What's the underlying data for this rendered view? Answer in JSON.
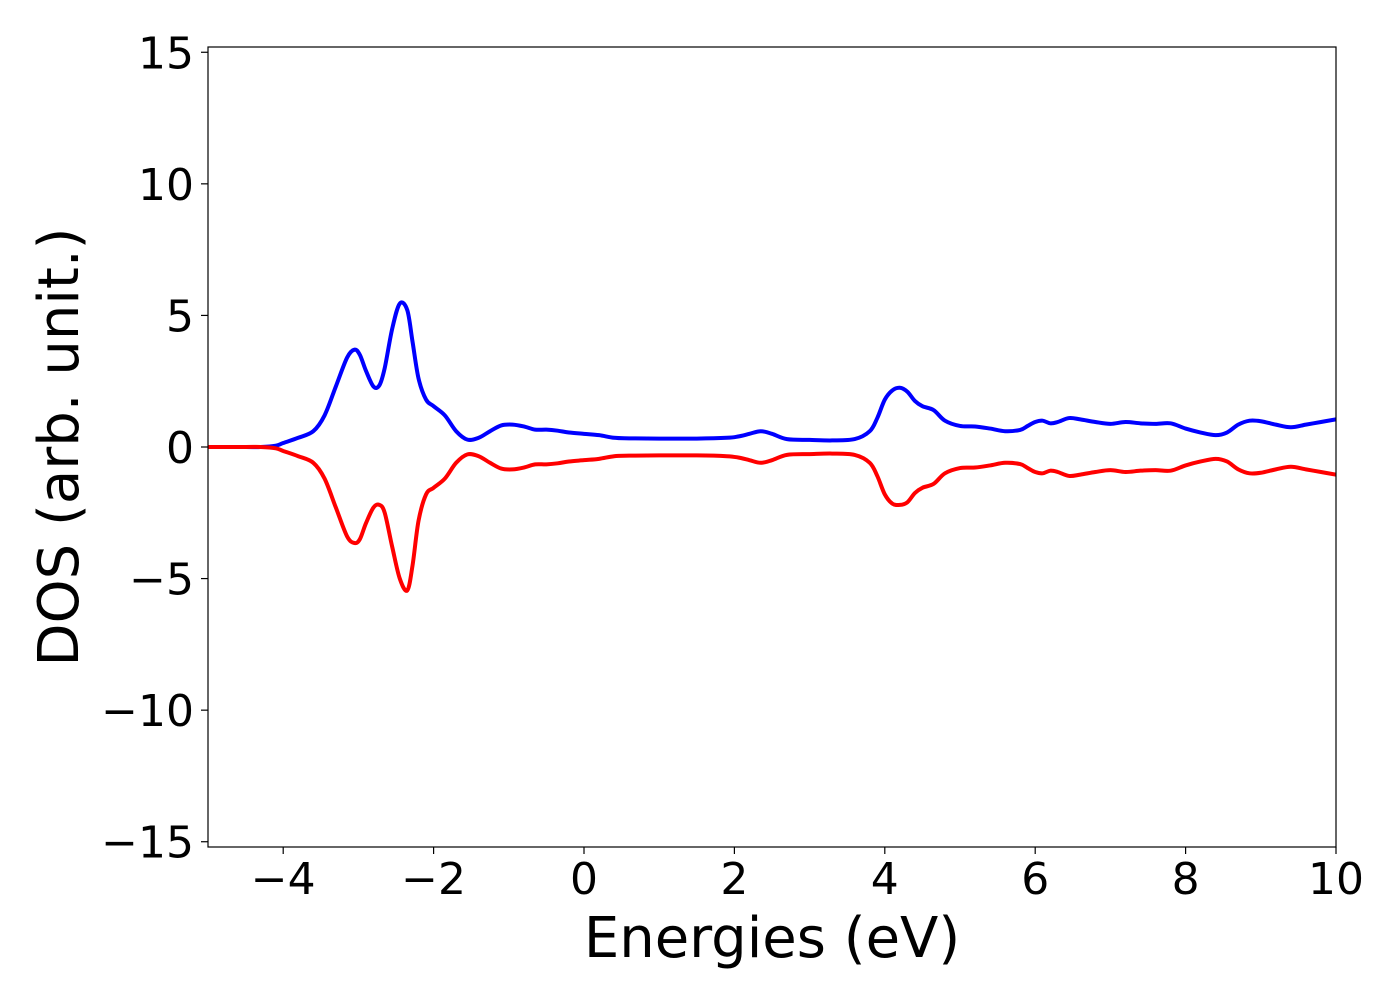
{
  "chart_data": {
    "type": "line",
    "title": "",
    "xlabel": "Energies (eV)",
    "ylabel": "DOS (arb. unit.)",
    "xlim": [
      -5,
      10
    ],
    "ylim": [
      -15.2,
      15.2
    ],
    "xticks": [
      -4,
      -2,
      0,
      2,
      4,
      6,
      8,
      10
    ],
    "yticks": [
      -15,
      -10,
      -5,
      0,
      5,
      10,
      15
    ],
    "xtick_labels": [
      "−4",
      "−2",
      "0",
      "2",
      "4",
      "6",
      "8",
      "10"
    ],
    "ytick_labels": [
      "−15",
      "−10",
      "−5",
      "0",
      "5",
      "10",
      "15"
    ],
    "grid": false,
    "legend": "none",
    "series": [
      {
        "color": "#0000ff",
        "x": [
          -5.0,
          -4.5,
          -4.3,
          -4.1,
          -4.0,
          -3.8,
          -3.6,
          -3.45,
          -3.3,
          -3.15,
          -3.05,
          -2.98,
          -2.9,
          -2.8,
          -2.72,
          -2.65,
          -2.55,
          -2.45,
          -2.35,
          -2.28,
          -2.2,
          -2.1,
          -2.0,
          -1.85,
          -1.7,
          -1.55,
          -1.4,
          -1.25,
          -1.1,
          -0.95,
          -0.8,
          -0.65,
          -0.5,
          -0.35,
          -0.2,
          0.0,
          0.2,
          0.4,
          0.6,
          1.0,
          1.5,
          1.9,
          2.05,
          2.2,
          2.35,
          2.5,
          2.7,
          3.0,
          3.3,
          3.6,
          3.8,
          3.9,
          4.0,
          4.1,
          4.2,
          4.3,
          4.4,
          4.5,
          4.65,
          4.8,
          5.0,
          5.2,
          5.4,
          5.6,
          5.8,
          5.9,
          6.0,
          6.1,
          6.2,
          6.3,
          6.45,
          6.6,
          6.8,
          7.0,
          7.2,
          7.4,
          7.6,
          7.8,
          8.0,
          8.2,
          8.4,
          8.55,
          8.7,
          8.85,
          9.0,
          9.2,
          9.4,
          9.6,
          9.8,
          10.0
        ],
        "values": [
          0.0,
          0.0,
          0.0,
          0.05,
          0.15,
          0.35,
          0.6,
          1.2,
          2.3,
          3.4,
          3.7,
          3.5,
          2.9,
          2.3,
          2.35,
          3.0,
          4.5,
          5.45,
          5.2,
          4.0,
          2.6,
          1.8,
          1.55,
          1.2,
          0.6,
          0.28,
          0.35,
          0.6,
          0.82,
          0.85,
          0.78,
          0.66,
          0.66,
          0.62,
          0.55,
          0.5,
          0.45,
          0.35,
          0.33,
          0.32,
          0.32,
          0.35,
          0.4,
          0.5,
          0.6,
          0.5,
          0.3,
          0.27,
          0.25,
          0.3,
          0.6,
          1.1,
          1.8,
          2.15,
          2.25,
          2.1,
          1.75,
          1.55,
          1.4,
          1.0,
          0.8,
          0.78,
          0.7,
          0.6,
          0.65,
          0.8,
          0.95,
          1.0,
          0.9,
          0.95,
          1.1,
          1.05,
          0.95,
          0.88,
          0.95,
          0.9,
          0.88,
          0.9,
          0.7,
          0.55,
          0.45,
          0.55,
          0.85,
          1.0,
          0.98,
          0.85,
          0.75,
          0.85,
          0.95,
          1.05
        ]
      },
      {
        "color": "#ff0000",
        "x": [
          -5.0,
          -4.5,
          -4.3,
          -4.1,
          -4.0,
          -3.8,
          -3.6,
          -3.45,
          -3.3,
          -3.15,
          -3.05,
          -2.98,
          -2.9,
          -2.8,
          -2.72,
          -2.65,
          -2.55,
          -2.45,
          -2.35,
          -2.28,
          -2.2,
          -2.1,
          -2.0,
          -1.85,
          -1.7,
          -1.55,
          -1.4,
          -1.25,
          -1.1,
          -0.95,
          -0.8,
          -0.65,
          -0.5,
          -0.35,
          -0.2,
          0.0,
          0.2,
          0.4,
          0.6,
          1.0,
          1.5,
          1.9,
          2.05,
          2.2,
          2.35,
          2.5,
          2.7,
          3.0,
          3.3,
          3.6,
          3.8,
          3.9,
          4.0,
          4.1,
          4.2,
          4.3,
          4.4,
          4.5,
          4.65,
          4.8,
          5.0,
          5.2,
          5.4,
          5.6,
          5.8,
          5.9,
          6.0,
          6.1,
          6.2,
          6.3,
          6.45,
          6.6,
          6.8,
          7.0,
          7.2,
          7.4,
          7.6,
          7.8,
          8.0,
          8.2,
          8.4,
          8.55,
          8.7,
          8.85,
          9.0,
          9.2,
          9.4,
          9.6,
          9.8,
          10.0
        ],
        "values": [
          0.0,
          0.0,
          0.0,
          -0.05,
          -0.15,
          -0.35,
          -0.6,
          -1.2,
          -2.3,
          -3.4,
          -3.65,
          -3.5,
          -2.9,
          -2.3,
          -2.2,
          -2.5,
          -3.8,
          -5.0,
          -5.45,
          -4.5,
          -2.8,
          -1.8,
          -1.55,
          -1.2,
          -0.6,
          -0.28,
          -0.35,
          -0.6,
          -0.82,
          -0.85,
          -0.78,
          -0.66,
          -0.66,
          -0.62,
          -0.55,
          -0.5,
          -0.45,
          -0.35,
          -0.33,
          -0.32,
          -0.32,
          -0.35,
          -0.4,
          -0.5,
          -0.6,
          -0.5,
          -0.3,
          -0.27,
          -0.25,
          -0.3,
          -0.6,
          -1.1,
          -1.8,
          -2.15,
          -2.2,
          -2.1,
          -1.75,
          -1.55,
          -1.4,
          -1.0,
          -0.8,
          -0.78,
          -0.7,
          -0.6,
          -0.65,
          -0.8,
          -0.95,
          -1.0,
          -0.9,
          -0.95,
          -1.1,
          -1.05,
          -0.95,
          -0.88,
          -0.95,
          -0.9,
          -0.88,
          -0.9,
          -0.7,
          -0.55,
          -0.45,
          -0.55,
          -0.85,
          -1.0,
          -0.98,
          -0.85,
          -0.75,
          -0.85,
          -0.95,
          -1.05
        ]
      }
    ]
  }
}
